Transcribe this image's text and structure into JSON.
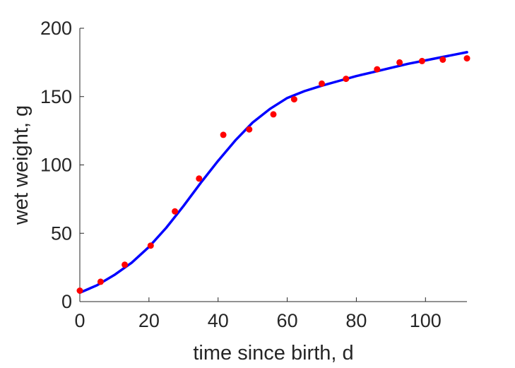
{
  "chart_data": {
    "type": "scatter",
    "title": "",
    "xlabel": "time since birth, d",
    "ylabel": "wet weight, g",
    "xlim": [
      0,
      112
    ],
    "ylim": [
      0,
      200
    ],
    "xticks": [
      0,
      20,
      40,
      60,
      80,
      100
    ],
    "yticks": [
      0,
      50,
      100,
      150,
      200
    ],
    "xtick_labels": [
      "0",
      "20",
      "40",
      "60",
      "80",
      "100"
    ],
    "ytick_labels": [
      "0",
      "50",
      "100",
      "150",
      "200"
    ],
    "grid": false,
    "legend": false,
    "box": false,
    "series": [
      {
        "kind": "markers",
        "color": "#ff0000",
        "points": [
          [
            0,
            8
          ],
          [
            6,
            14.5
          ],
          [
            13,
            27
          ],
          [
            20.5,
            41
          ],
          [
            27.5,
            66
          ],
          [
            34.5,
            90
          ],
          [
            41.5,
            122
          ],
          [
            49,
            126
          ],
          [
            56,
            137
          ],
          [
            62,
            148
          ],
          [
            70,
            159.5
          ],
          [
            77,
            163
          ],
          [
            86,
            170
          ],
          [
            92.5,
            175
          ],
          [
            99,
            176
          ],
          [
            105,
            177
          ],
          [
            112,
            178
          ]
        ]
      },
      {
        "kind": "line",
        "color": "#0000ff",
        "points": [
          [
            0,
            6.5
          ],
          [
            5,
            12
          ],
          [
            10,
            19.5
          ],
          [
            15,
            28.5
          ],
          [
            20,
            40
          ],
          [
            25,
            54
          ],
          [
            30,
            70
          ],
          [
            35,
            87
          ],
          [
            40,
            103
          ],
          [
            45,
            118
          ],
          [
            50,
            131
          ],
          [
            55,
            141
          ],
          [
            60,
            149
          ],
          [
            65,
            154
          ],
          [
            70,
            158
          ],
          [
            75,
            161.5
          ],
          [
            80,
            165
          ],
          [
            85,
            168
          ],
          [
            90,
            171
          ],
          [
            95,
            174
          ],
          [
            100,
            176.5
          ],
          [
            105,
            179
          ],
          [
            110,
            181.5
          ],
          [
            112,
            182.5
          ]
        ]
      }
    ]
  }
}
